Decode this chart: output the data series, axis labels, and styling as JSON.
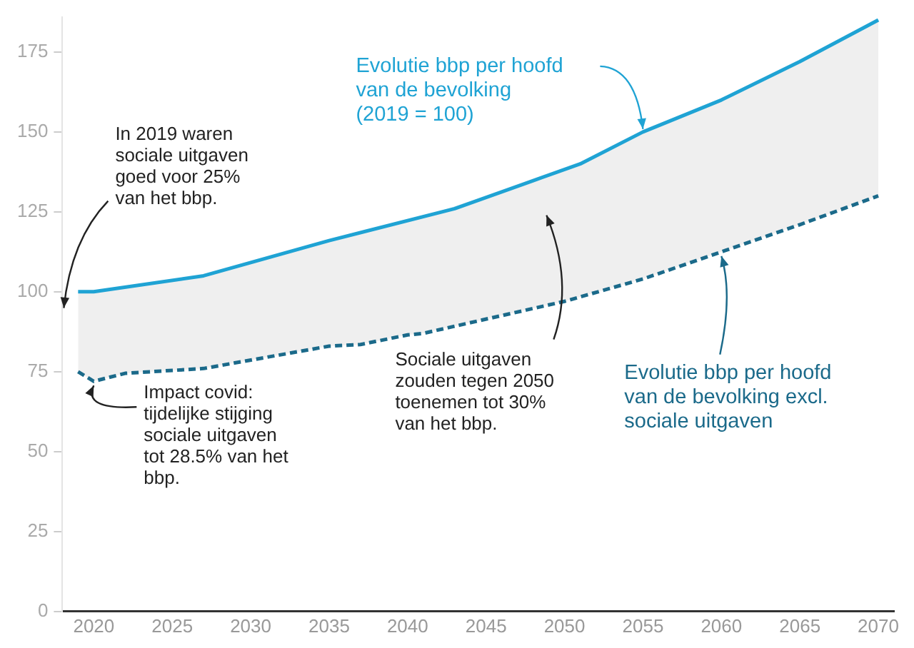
{
  "chart_data": {
    "type": "line",
    "marker": "none",
    "xlim": [
      2018,
      2071
    ],
    "xticks": [
      2020,
      2025,
      2030,
      2035,
      2040,
      2045,
      2050,
      2055,
      2060,
      2065,
      2070
    ],
    "ylim": [
      0,
      186
    ],
    "yticks": [
      0,
      25,
      50,
      75,
      100,
      125,
      150,
      175
    ],
    "series": [
      {
        "name": "Evolutie bbp per hoofd\nvan de bevolking\n(2019 = 100)",
        "color": "#1fa3d4",
        "line_style": "solid",
        "x": [
          2019,
          2020,
          2027,
          2035,
          2043,
          2051,
          2055,
          2060,
          2065,
          2070
        ],
        "values": [
          100,
          100,
          105,
          116,
          126,
          140,
          150,
          160,
          172,
          185
        ]
      },
      {
        "name": "Evolutie bbp per hoofd\nvan de bevolking excl.\nsociale uitgaven",
        "color": "#1b6a8a",
        "line_style": "dashed",
        "x": [
          2019,
          2020,
          2022,
          2027,
          2035,
          2037,
          2040,
          2041,
          2050,
          2055,
          2060,
          2065,
          2070
        ],
        "values": [
          75,
          72,
          74.5,
          76,
          83,
          83.5,
          86.5,
          87,
          97,
          104,
          112.5,
          121,
          130
        ],
        "lower": [
          75,
          72,
          74.5,
          76,
          83,
          83.5,
          86.5,
          87,
          97,
          104,
          112.5,
          121,
          130
        ],
        "upper": [
          100,
          100,
          101.5,
          105,
          116,
          118.5,
          122,
          123.5,
          138,
          150,
          160,
          172,
          185
        ]
      }
    ],
    "annotations": [
      "In 2019 waren\nsociale uitgaven\ngoed voor 25%\nvan het bbp.",
      {
        "text": "Impact covid:\ntijdelijke stijging\nsociale uitgaven\ntot 28.5% van het\nbbp.",
        "x": 2020,
        "y": 72
      },
      "Sociale uitgaven\nzouden tegen 2050\ntoenemen tot 30%\nvan het bbp."
    ]
  }
}
